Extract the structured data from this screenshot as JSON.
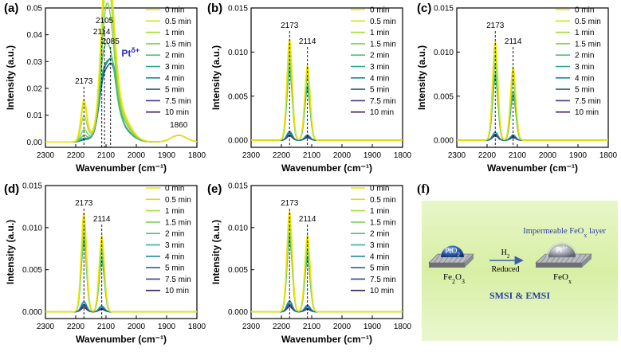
{
  "legend_labels": [
    "0 min",
    "0.5 min",
    "1 min",
    "1.5 min",
    "2 min",
    "3 min",
    "4 min",
    "5 min",
    "7.5 min",
    "10 min"
  ],
  "series_colors": [
    "#f2e300",
    "#cfe31a",
    "#a6db3a",
    "#7acf57",
    "#4fc173",
    "#2aa88a",
    "#1a8794",
    "#24638f",
    "#3a3e88",
    "#3f1c5c"
  ],
  "x_label": "Wavenumber (cm⁻¹)",
  "y_label": "Intensity (a.u.)",
  "x_ticks": [
    "2300",
    "2200",
    "2100",
    "2000",
    "1900",
    "1800"
  ],
  "panel_f": {
    "letter": "(f)",
    "layer": "Impermeable FeO",
    "layer_sub": "x",
    "layer_tail": " layer",
    "ox_particle": "PtO",
    "ox_particle_sub": "2",
    "red_particle": "Pt",
    "red_particle_sup": "δ+",
    "h2": "H",
    "h2_sub": "2",
    "reduced": "Reduced",
    "support_left": "Fe",
    "support_left_sub1": "2",
    "support_left_mid": "O",
    "support_left_sub2": "3",
    "support_right": "FeO",
    "support_right_sub": "x",
    "tagline": "SMSI & EMSI"
  },
  "chart_data": [
    {
      "panel": "(a)",
      "type": "line",
      "xlabel": "Wavenumber (cm⁻¹)",
      "ylabel": "Intensity (a.u.)",
      "xlim": [
        2300,
        1800
      ],
      "ylim": [
        -0.002,
        0.05
      ],
      "yticks": [
        "0.00",
        "0.01",
        "0.02",
        "0.03",
        "0.04",
        "0.05"
      ],
      "ytick_values": [
        0,
        0.01,
        0.02,
        0.03,
        0.04,
        0.05
      ],
      "series_peaks": [
        {
          "name": "0 min",
          "peaks": [
            [
              2173,
              0.015
            ],
            [
              2105,
              0.037
            ],
            [
              2085,
              0.035
            ]
          ]
        },
        {
          "name": "0.5 min",
          "peaks": [
            [
              2173,
              0.013
            ],
            [
              2105,
              0.035
            ],
            [
              2085,
              0.033
            ]
          ]
        },
        {
          "name": "1 min",
          "peaks": [
            [
              2173,
              0.009
            ],
            [
              2105,
              0.031
            ],
            [
              2085,
              0.03
            ]
          ]
        },
        {
          "name": "1.5 min",
          "peaks": [
            [
              2173,
              0.004
            ],
            [
              2105,
              0.026
            ],
            [
              2085,
              0.026
            ]
          ]
        },
        {
          "name": "2 min",
          "peaks": [
            [
              2173,
              0.002
            ],
            [
              2110,
              0.02
            ],
            [
              2085,
              0.021
            ]
          ]
        },
        {
          "name": "3 min",
          "peaks": [
            [
              2173,
              0.001
            ],
            [
              2110,
              0.017
            ],
            [
              2080,
              0.02
            ]
          ]
        },
        {
          "name": "4 min",
          "peaks": [
            [
              2173,
              0.0008
            ],
            [
              2110,
              0.016
            ],
            [
              2080,
              0.02
            ]
          ]
        },
        {
          "name": "5 min",
          "peaks": [
            [
              2173,
              0.0006
            ],
            [
              2110,
              0.015
            ],
            [
              2080,
              0.019
            ]
          ]
        },
        {
          "name": "7.5 min",
          "peaks": [
            [
              2173,
              0.0005
            ],
            [
              2110,
              0.015
            ],
            [
              2080,
              0.019
            ]
          ]
        },
        {
          "name": "10 min",
          "peaks": [
            [
              2173,
              0.0005
            ],
            [
              2110,
              0.015
            ],
            [
              2080,
              0.019
            ]
          ]
        }
      ],
      "annotations": [
        {
          "text": "2173",
          "x": 2173,
          "y": 0.015
        },
        {
          "text": "2114",
          "x": 2114,
          "y": 0.0355
        },
        {
          "text": "2105",
          "x": 2105,
          "y": 0.037
        },
        {
          "text": "2085",
          "x": 2085,
          "y": 0.035
        },
        {
          "text": "1860",
          "x": 1860,
          "y": 0.0025
        }
      ],
      "label_pt": "Pt",
      "label_pt_sup": "δ+"
    },
    {
      "panel": "(b)",
      "type": "line",
      "xlabel": "Wavenumber (cm⁻¹)",
      "ylabel": "Intensity (a.u.)",
      "xlim": [
        2300,
        1800
      ],
      "ylim": [
        -0.0008,
        0.015
      ],
      "yticks": [
        "0.000",
        "0.005",
        "0.010",
        "0.015"
      ],
      "ytick_values": [
        0,
        0.005,
        0.01,
        0.015
      ],
      "peaks_x": [
        2173,
        2114
      ],
      "series_heights": [
        [
          0.0115,
          0.0085
        ],
        [
          0.0108,
          0.0082
        ],
        [
          0.0098,
          0.0078
        ],
        [
          0.0088,
          0.0072
        ],
        [
          0.008,
          0.0062
        ],
        [
          0.0078,
          0.0058
        ],
        [
          0.001,
          0.0006
        ],
        [
          0.0008,
          0.0005
        ],
        [
          0.0006,
          0.0004
        ],
        [
          0.0005,
          0.0003
        ]
      ],
      "annotations": [
        {
          "text": "2173",
          "x": 2173
        },
        {
          "text": "2114",
          "x": 2114
        }
      ]
    },
    {
      "panel": "(c)",
      "type": "line",
      "xlabel": "Wavenumber (cm⁻¹)",
      "ylabel": "Intensity (a.u.)",
      "xlim": [
        2300,
        1800
      ],
      "ylim": [
        -0.0008,
        0.015
      ],
      "yticks": [
        "0.000",
        "0.005",
        "0.010",
        "0.015"
      ],
      "ytick_values": [
        0,
        0.005,
        0.01,
        0.015
      ],
      "peaks_x": [
        2173,
        2114
      ],
      "series_heights": [
        [
          0.0112,
          0.0083
        ],
        [
          0.0105,
          0.008
        ],
        [
          0.0096,
          0.0075
        ],
        [
          0.0086,
          0.0068
        ],
        [
          0.0075,
          0.0055
        ],
        [
          0.007,
          0.005
        ],
        [
          0.0009,
          0.0006
        ],
        [
          0.0007,
          0.0005
        ],
        [
          0.0006,
          0.0004
        ],
        [
          0.0005,
          0.0003
        ]
      ],
      "annotations": [
        {
          "text": "2173",
          "x": 2173
        },
        {
          "text": "2114",
          "x": 2114
        }
      ]
    },
    {
      "panel": "(d)",
      "type": "line",
      "xlabel": "Wavenumber (cm⁻¹)",
      "ylabel": "Intensity (a.u.)",
      "xlim": [
        2300,
        1800
      ],
      "ylim": [
        -0.0008,
        0.015
      ],
      "yticks": [
        "0.000",
        "0.005",
        "0.010",
        "0.015"
      ],
      "ytick_values": [
        0,
        0.005,
        0.01,
        0.015
      ],
      "peaks_x": [
        2173,
        2114
      ],
      "series_heights": [
        [
          0.0118,
          0.009
        ],
        [
          0.011,
          0.0085
        ],
        [
          0.01,
          0.008
        ],
        [
          0.009,
          0.0072
        ],
        [
          0.0085,
          0.0065
        ],
        [
          0.0082,
          0.006
        ],
        [
          0.0012,
          0.0007
        ],
        [
          0.0009,
          0.0005
        ],
        [
          0.0007,
          0.0004
        ],
        [
          0.0005,
          0.0003
        ]
      ],
      "annotations": [
        {
          "text": "2173",
          "x": 2173
        },
        {
          "text": "2114",
          "x": 2114
        }
      ]
    },
    {
      "panel": "(e)",
      "type": "line",
      "xlabel": "Wavenumber (cm⁻¹)",
      "ylabel": "Intensity (a.u.)",
      "xlim": [
        2300,
        1800
      ],
      "ylim": [
        -0.0008,
        0.015
      ],
      "yticks": [
        "0.000",
        "0.005",
        "0.010",
        "0.015"
      ],
      "ytick_values": [
        0,
        0.005,
        0.01,
        0.015
      ],
      "peaks_x": [
        2173,
        2114
      ],
      "series_heights": [
        [
          0.012,
          0.0091
        ],
        [
          0.0112,
          0.0086
        ],
        [
          0.0102,
          0.0081
        ],
        [
          0.0092,
          0.0074
        ],
        [
          0.0088,
          0.0066
        ],
        [
          0.0085,
          0.0062
        ],
        [
          0.0013,
          0.0008
        ],
        [
          0.001,
          0.0006
        ],
        [
          0.0008,
          0.0004
        ],
        [
          0.0006,
          0.0003
        ]
      ],
      "annotations": [
        {
          "text": "2173",
          "x": 2173
        },
        {
          "text": "2114",
          "x": 2114
        }
      ]
    }
  ]
}
